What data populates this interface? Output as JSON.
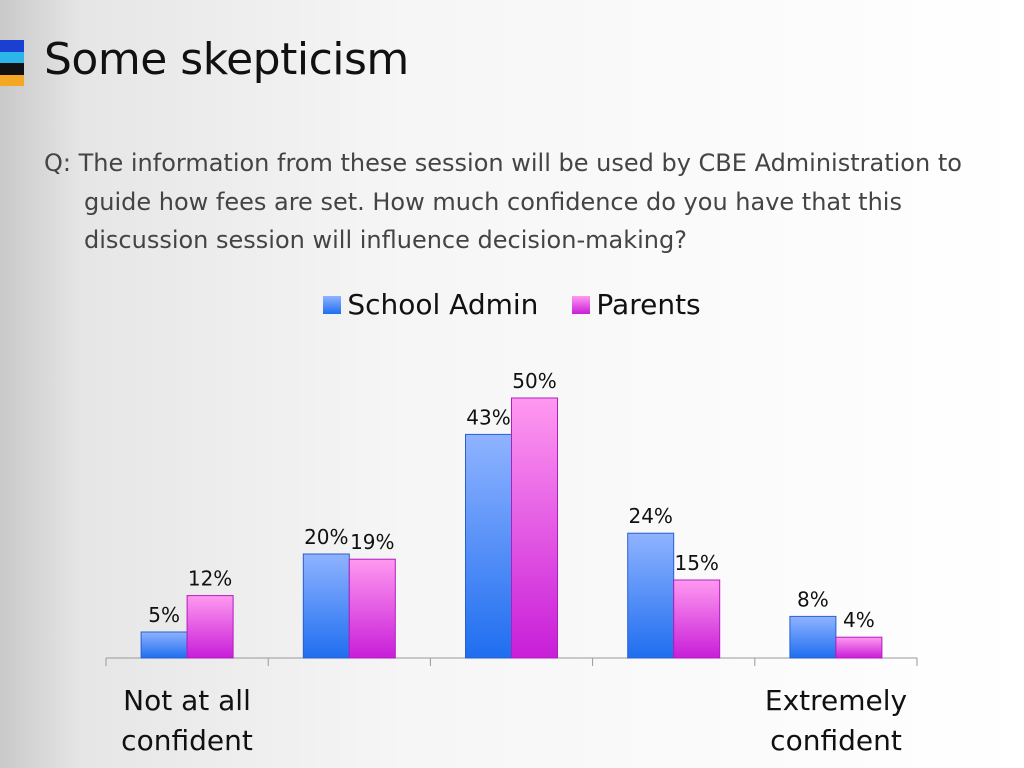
{
  "slide": {
    "title": "Some skepticism",
    "question": "Q: The information from these session will be used by CBE Administration to guide how fees are set. How much confidence do you have that this discussion session will influence decision-making?"
  },
  "accent_colors": [
    "#1a3fd1",
    "#2bb5e8",
    "#111111",
    "#f5a623"
  ],
  "chart_data": {
    "type": "bar",
    "categories": [
      "Not at all confident",
      "",
      "",
      "",
      "Extremely confident"
    ],
    "series": [
      {
        "name": "School Admin",
        "values": [
          5,
          20,
          43,
          24,
          8
        ],
        "labels": [
          "5%",
          "20%",
          "43%",
          "24%",
          "8%"
        ],
        "color_top": "#8fb3ff",
        "color_bottom": "#1f6ef0"
      },
      {
        "name": "Parents",
        "values": [
          12,
          19,
          50,
          15,
          4
        ],
        "labels": [
          "12%",
          "19%",
          "50%",
          "15%",
          "4%"
        ],
        "color_top": "#ff99f0",
        "color_bottom": "#c81ed8"
      }
    ],
    "ylim": [
      0,
      50
    ],
    "grid": false,
    "legend": "top"
  }
}
